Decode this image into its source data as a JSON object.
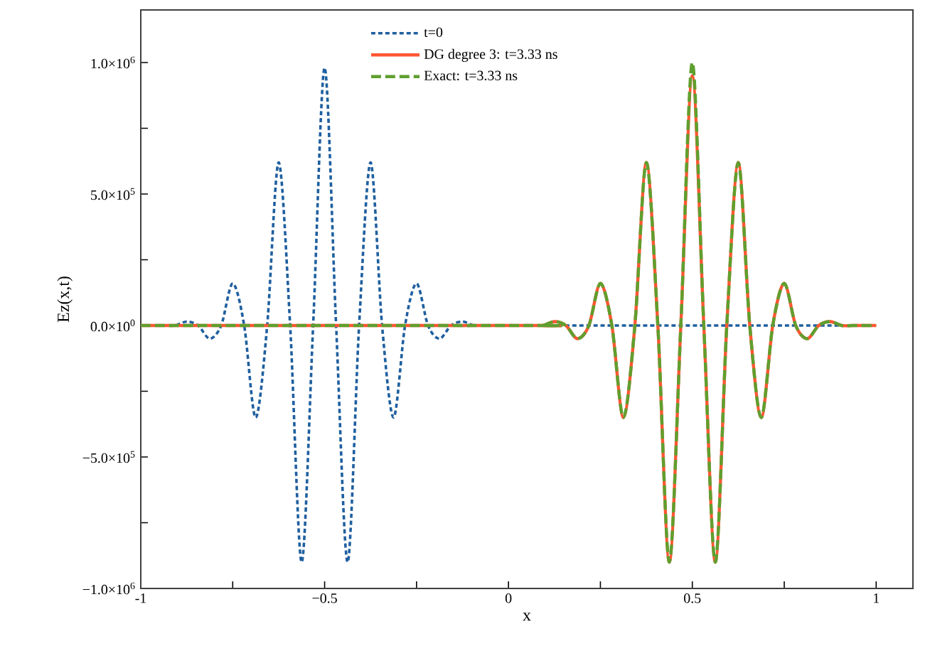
{
  "chart_data": {
    "type": "line",
    "xlabel": "x",
    "ylabel": "Ez(x,t)",
    "xlim": [
      -1,
      1.1
    ],
    "ylim": [
      -1000000,
      1200000
    ],
    "xticks": [
      -1,
      {
        "value": -0.75,
        "label": null
      },
      {
        "value": -0.5,
        "label": "−0.5"
      },
      {
        "value": -0.25,
        "label": null
      },
      0,
      {
        "value": 0.25,
        "label": null
      },
      0.5,
      {
        "value": 0.75,
        "label": null
      },
      1
    ],
    "yticks": [
      {
        "value": -1000000,
        "label": "−1.0×10$^{6}$"
      },
      {
        "value": -750000,
        "label": null
      },
      {
        "value": -500000,
        "label": "−5.0×10$^{5}$"
      },
      {
        "value": -250000,
        "label": null
      },
      {
        "value": 0,
        "label": "0.0×10$^{0}$"
      },
      {
        "value": 250000,
        "label": null
      },
      {
        "value": 500000,
        "label": "5.0×10$^{5}$"
      },
      {
        "value": 750000,
        "label": null
      },
      {
        "value": 1000000,
        "label": "1.0×10$^{6}$"
      }
    ],
    "legend": "top",
    "grid": false,
    "marker": "none",
    "series": [
      {
        "name": "t=0",
        "color": "#1f5f9f",
        "line_style": "dotted",
        "x": [
          -1,
          -0.9375,
          -0.90625,
          -0.875,
          -0.84375,
          -0.8125,
          -0.78125,
          -0.75,
          -0.71875,
          -0.6875,
          -0.65625,
          -0.625,
          -0.59375,
          -0.5625,
          -0.53125,
          -0.5,
          -0.46875,
          -0.4375,
          -0.40625,
          -0.375,
          -0.34375,
          -0.3125,
          -0.28125,
          -0.25,
          -0.21875,
          -0.1875,
          -0.15625,
          -0.125,
          -0.09375,
          -0.0625,
          0.9
        ],
        "values": [
          0,
          0,
          0,
          15000,
          0,
          -50000,
          0,
          160000,
          0,
          -350000,
          0,
          620000,
          0,
          -900000,
          0,
          980000,
          0,
          -900000,
          0,
          620000,
          0,
          -350000,
          0,
          160000,
          0,
          -50000,
          0,
          15000,
          0,
          0,
          0
        ]
      },
      {
        "name": "DG degree 3:  t=3.33 ns",
        "color": "#ff5733",
        "line_style": "solid",
        "x": [
          -1,
          0.0625,
          0.09375,
          0.125,
          0.15625,
          0.1875,
          0.21875,
          0.25,
          0.28125,
          0.3125,
          0.34375,
          0.375,
          0.40625,
          0.4375,
          0.46875,
          0.5,
          0.53125,
          0.5625,
          0.59375,
          0.625,
          0.65625,
          0.6875,
          0.71875,
          0.75,
          0.78125,
          0.8125,
          0.84375,
          0.875,
          0.90625,
          0.9375,
          1
        ],
        "values": [
          0,
          0,
          0,
          15000,
          0,
          -50000,
          0,
          160000,
          0,
          -350000,
          0,
          620000,
          0,
          -900000,
          0,
          950000,
          0,
          -900000,
          0,
          620000,
          0,
          -350000,
          0,
          160000,
          0,
          -50000,
          0,
          15000,
          0,
          0,
          0
        ]
      },
      {
        "name": "Exact: t=3.33 ns",
        "color": "#5f9f2f",
        "line_style": "dashed",
        "x": [
          -1,
          0.0625,
          0.09375,
          0.125,
          0.15625,
          0.1875,
          0.21875,
          0.25,
          0.28125,
          0.3125,
          0.34375,
          0.375,
          0.40625,
          0.4375,
          0.46875,
          0.5,
          0.53125,
          0.5625,
          0.59375,
          0.625,
          0.65625,
          0.6875,
          0.71875,
          0.75,
          0.78125,
          0.8125,
          0.84375,
          0.875,
          0.90625,
          0.9375,
          1
        ],
        "values": [
          0,
          0,
          0,
          15000,
          0,
          -50000,
          0,
          160000,
          0,
          -350000,
          0,
          620000,
          0,
          -900000,
          0,
          1000000,
          0,
          -900000,
          0,
          620000,
          0,
          -350000,
          0,
          160000,
          0,
          -50000,
          0,
          15000,
          0,
          0,
          0
        ]
      }
    ]
  }
}
